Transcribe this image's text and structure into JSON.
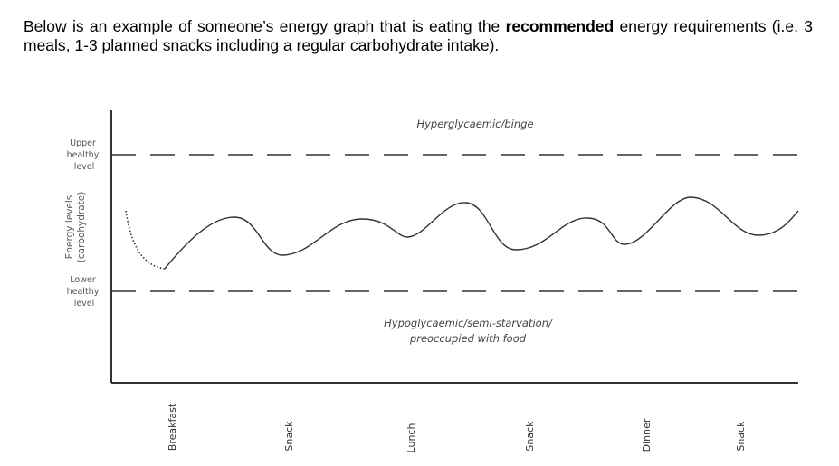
{
  "intro": {
    "part1": "Below is an example of someone’s energy graph that is eating the ",
    "bold": "recommended",
    "part2": " energy requirements (i.e. 3 meals, 1-3 planned snacks including a regular carbohydrate intake)."
  },
  "diagram": {
    "y_axis_label_line1": "Energy levels",
    "y_axis_label_line2": "(carbohydrate)",
    "upper_level_label": [
      "Upper",
      "healthy",
      "level"
    ],
    "lower_level_label": [
      "Lower",
      "healthy",
      "level"
    ],
    "zone_above": "Hyperglycaemic/binge",
    "zone_below_line1": "Hypoglycaemic/semi-starvation/",
    "zone_below_line2": "preoccupied with food",
    "x_labels": [
      "Breakfast",
      "Snack",
      "Lunch",
      "Snack",
      "Dinner",
      "Snack"
    ],
    "line_color": "#333333"
  }
}
